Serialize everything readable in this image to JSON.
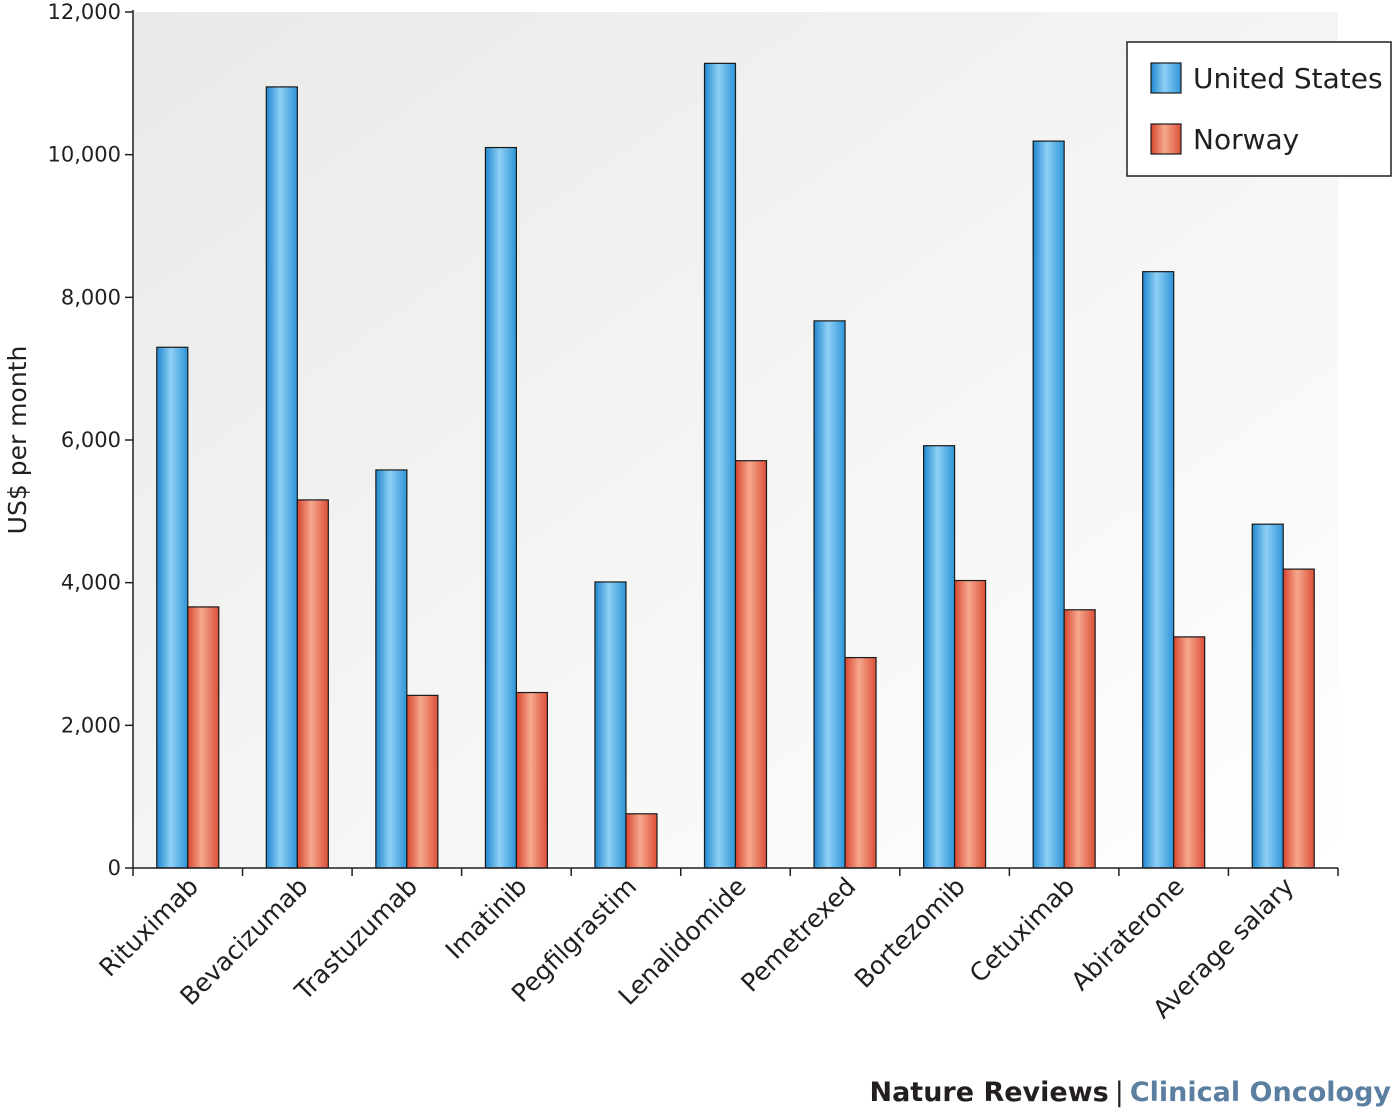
{
  "chart_data": {
    "type": "bar",
    "ylabel": "US$ per month",
    "ylim": [
      0,
      12000
    ],
    "yticks": [
      0,
      2000,
      4000,
      6000,
      8000,
      10000,
      12000
    ],
    "ytick_labels": [
      "0",
      "2,000",
      "4,000",
      "6,000",
      "8,000",
      "10,000",
      "12,000"
    ],
    "grid": false,
    "legend_position": "top-right",
    "categories": [
      "Rituximab",
      "Bevacizumab",
      "Trastuzumab",
      "Imatinib",
      "Pegfilgrastim",
      "Lenalidomide",
      "Pemetrexed",
      "Bortezomib",
      "Cetuximab",
      "Abiraterone",
      "Average salary"
    ],
    "series": [
      {
        "name": "United States",
        "color": "#3ba3e0",
        "values": [
          7300,
          10950,
          5580,
          10100,
          4010,
          11280,
          7670,
          5920,
          10190,
          8360,
          4820
        ]
      },
      {
        "name": "Norway",
        "color": "#e5624a",
        "values": [
          3660,
          5160,
          2420,
          2460,
          760,
          5710,
          2950,
          4030,
          3620,
          3240,
          4190
        ]
      }
    ]
  },
  "footer": {
    "journal": "Nature Reviews",
    "separator": "|",
    "section": "Clinical Oncology"
  }
}
